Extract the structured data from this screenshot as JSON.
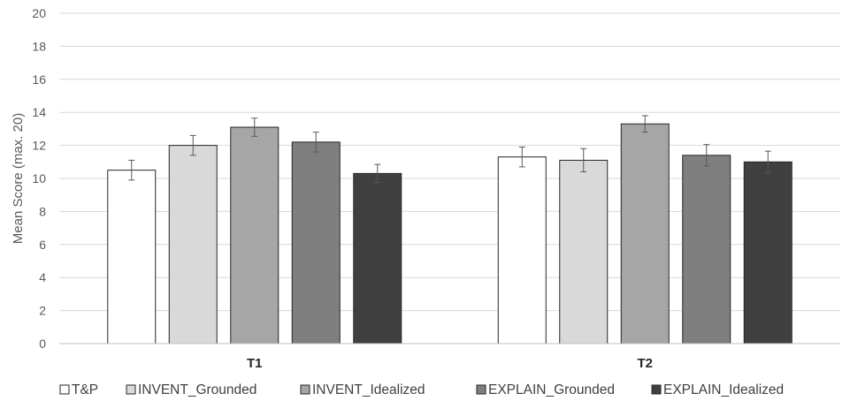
{
  "chart_data": {
    "type": "bar",
    "title": "",
    "xlabel": "",
    "ylabel": "Mean Score (max. 20)",
    "ylim": [
      0,
      20
    ],
    "yticks": [
      0,
      2,
      4,
      6,
      8,
      10,
      12,
      14,
      16,
      18,
      20
    ],
    "grid": true,
    "legend_position": "bottom",
    "categories": [
      "T1",
      "T2"
    ],
    "series": [
      {
        "name": "T&P",
        "color": "#ffffff",
        "values": [
          10.5,
          11.3
        ],
        "errors": [
          0.6,
          0.6
        ]
      },
      {
        "name": "INVENT_Grounded",
        "color": "#d9d9d9",
        "values": [
          12.0,
          11.1
        ],
        "errors": [
          0.6,
          0.7
        ]
      },
      {
        "name": "INVENT_Idealized",
        "color": "#a6a6a6",
        "values": [
          13.1,
          13.3
        ],
        "errors": [
          0.55,
          0.5
        ]
      },
      {
        "name": "EXPLAIN_Grounded",
        "color": "#7f7f7f",
        "values": [
          12.2,
          11.4
        ],
        "errors": [
          0.6,
          0.65
        ]
      },
      {
        "name": "EXPLAIN_Idealized",
        "color": "#404040",
        "values": [
          10.3,
          11.0
        ],
        "errors": [
          0.55,
          0.65
        ]
      }
    ]
  }
}
